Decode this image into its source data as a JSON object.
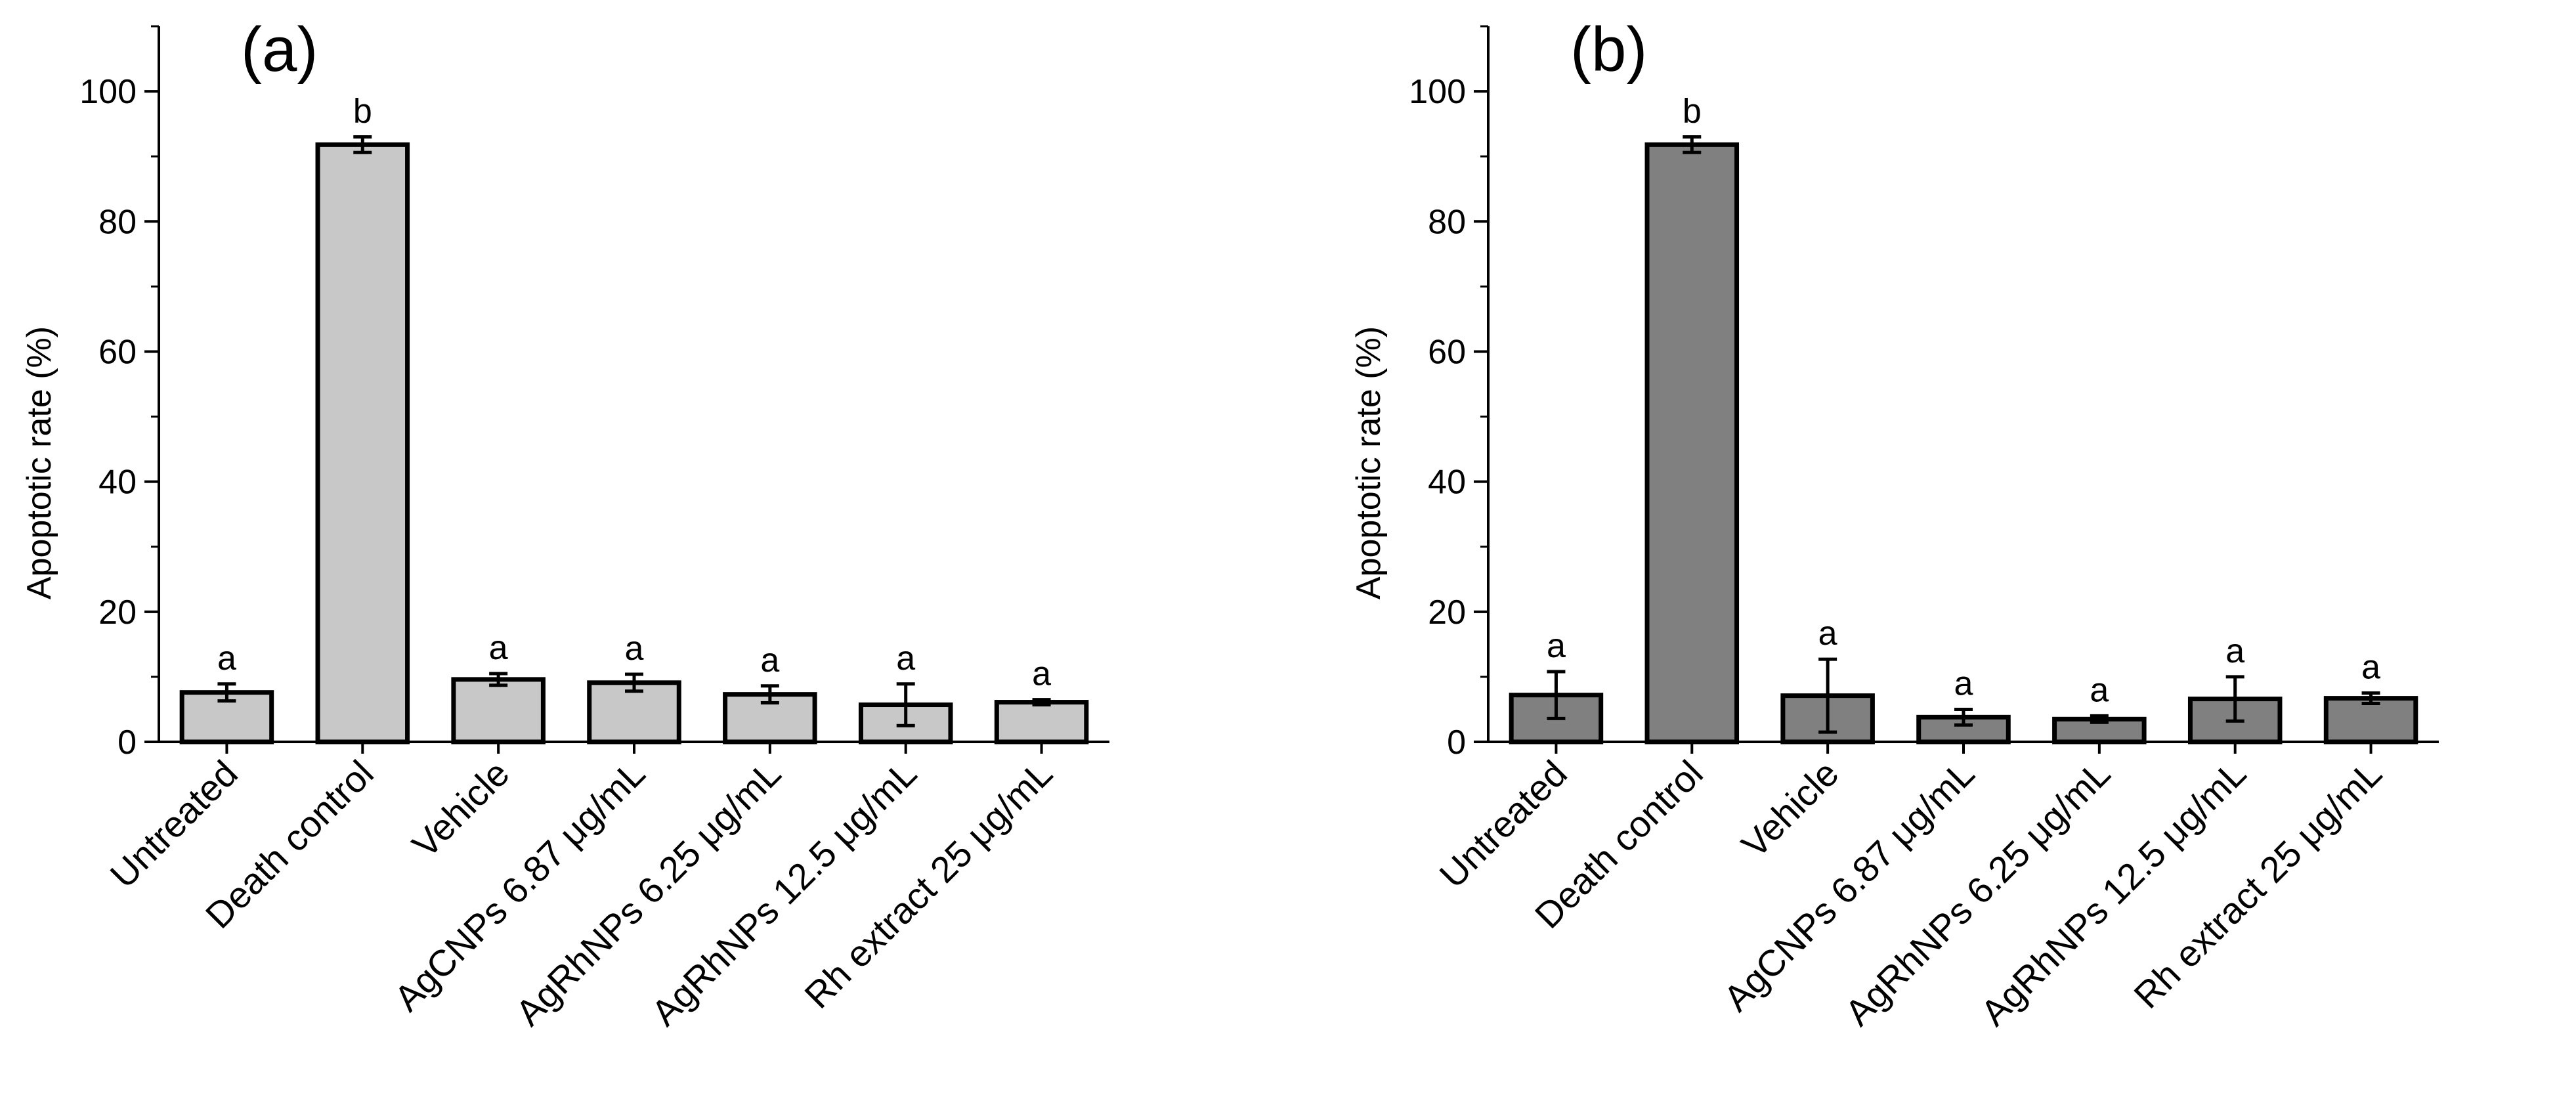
{
  "chart_data": [
    {
      "type": "bar",
      "panel_label": "(a)",
      "ylabel": "Apoptotic rate (%)",
      "xlabel": "",
      "ylim": [
        0,
        110
      ],
      "yticks": [
        "0",
        "20",
        "40",
        "60",
        "80",
        "100"
      ],
      "categories": [
        "Untreated",
        "Death control",
        "Vehicle",
        "AgCNPs 6.87 μg/mL",
        "AgRhNPs 6.25 μg/mL",
        "AgRhNPs 12.5 μg/mL",
        "Rh extract 25 μg/mL"
      ],
      "values": [
        7.6,
        91.8,
        9.6,
        9.1,
        7.3,
        5.7,
        6.1
      ],
      "errors": [
        1.3,
        1.2,
        0.9,
        1.3,
        1.3,
        3.2,
        0.4
      ],
      "significance": [
        "a",
        "b",
        "a",
        "a",
        "a",
        "a",
        "a"
      ],
      "bar_color": "#c8c8c8",
      "grid": false
    },
    {
      "type": "bar",
      "panel_label": "(b)",
      "ylabel": "Apoptotic rate (%)",
      "xlabel": "",
      "ylim": [
        0,
        110
      ],
      "yticks": [
        "0",
        "20",
        "40",
        "60",
        "80",
        "100"
      ],
      "categories": [
        "Untreated",
        "Death control",
        "Vehicle",
        "AgCNPs 6.87 μg/mL",
        "AgRhNPs 6.25 μg/mL",
        "AgRhNPs 12.5 μg/mL",
        "Rh extract 25 μg/mL"
      ],
      "values": [
        7.2,
        91.8,
        7.1,
        3.8,
        3.5,
        6.6,
        6.7
      ],
      "errors": [
        3.6,
        1.2,
        5.6,
        1.2,
        0.5,
        3.4,
        0.8
      ],
      "significance": [
        "a",
        "b",
        "a",
        "a",
        "a",
        "a",
        "a"
      ],
      "bar_color": "#808080",
      "grid": false
    }
  ]
}
